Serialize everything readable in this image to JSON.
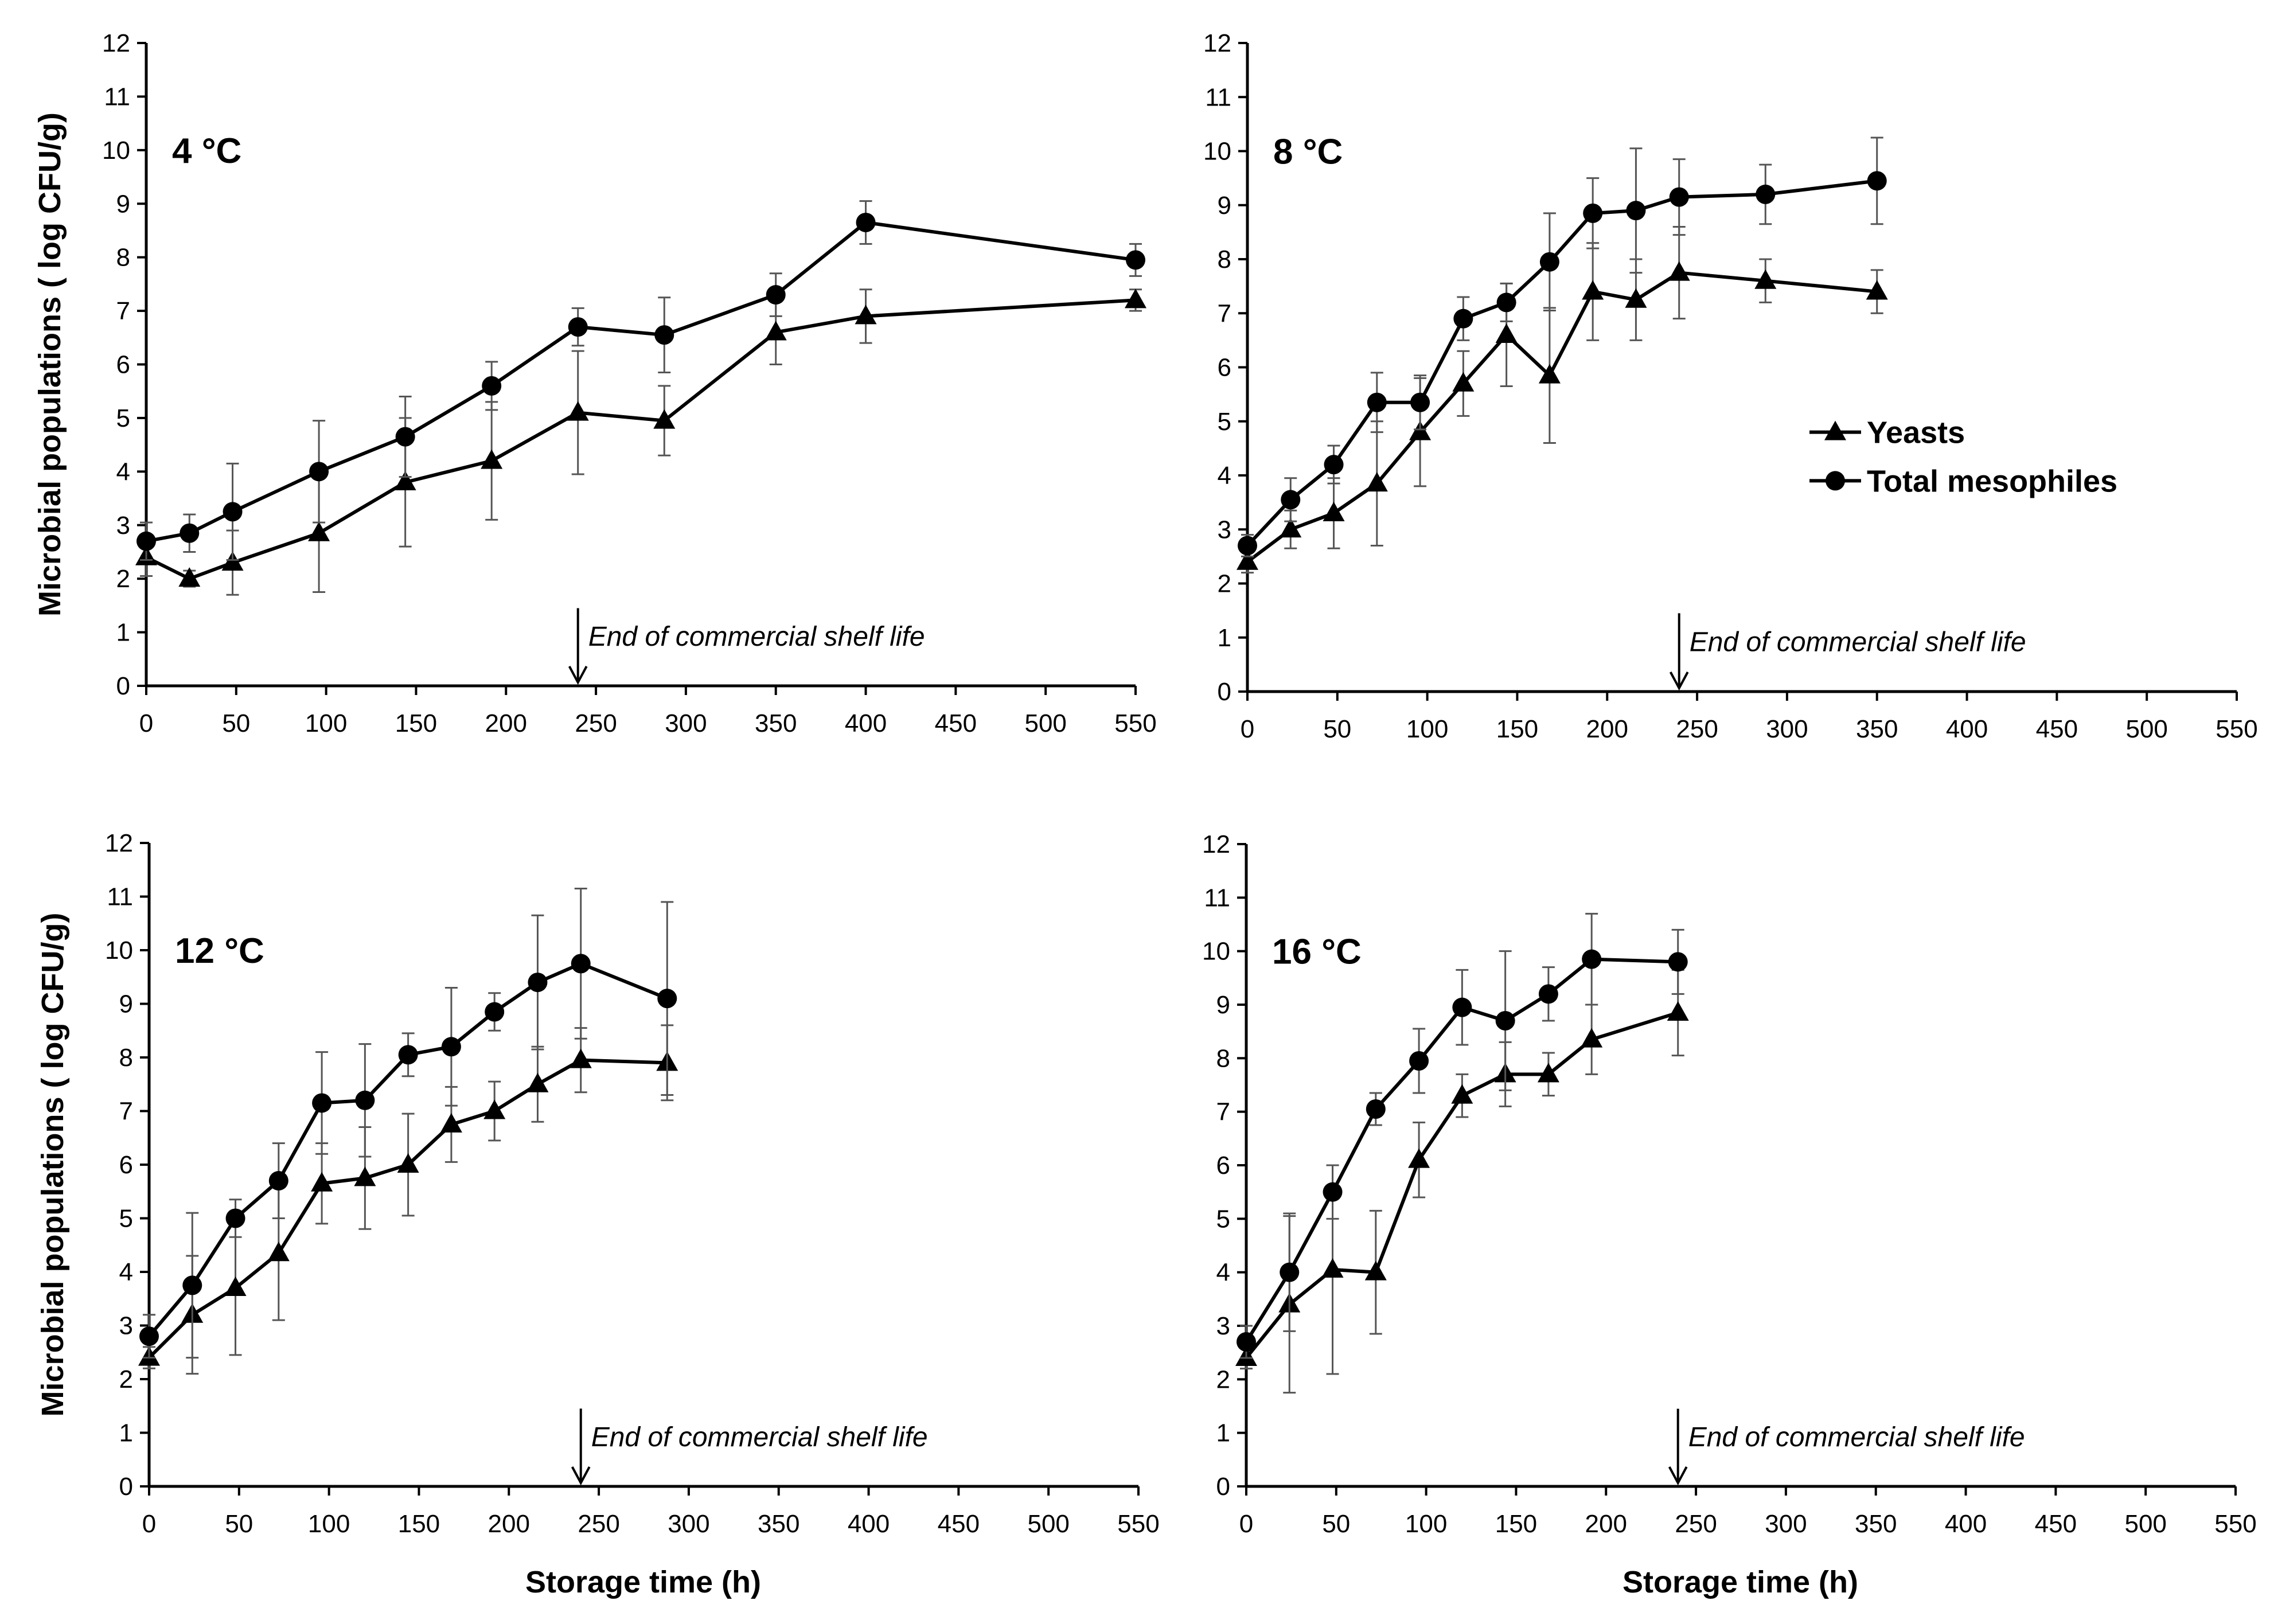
{
  "chart_data": [
    {
      "type": "line",
      "panel_label": "4 °C",
      "x_ticks": [
        "0",
        "50",
        "100",
        "150",
        "200",
        "250",
        "300",
        "350",
        "400",
        "450",
        "500",
        "550"
      ],
      "y_ticks": [
        "0",
        "1",
        "2",
        "3",
        "4",
        "5",
        "6",
        "7",
        "8",
        "9",
        "10",
        "11",
        "12"
      ],
      "xlim": [
        0,
        550
      ],
      "ylim": [
        0,
        12
      ],
      "ylabel": "Microbial populations ( log CFU/g)",
      "xlabel": "",
      "annotation": {
        "text": "End of commercial shelf life",
        "x": 240
      },
      "series": [
        {
          "name": "Yeasts",
          "marker": "triangle",
          "x": [
            0,
            24,
            48,
            96,
            144,
            192,
            240,
            288,
            350,
            400,
            550
          ],
          "y": [
            2.4,
            2.0,
            2.3,
            2.85,
            3.8,
            4.2,
            5.1,
            4.95,
            6.6,
            6.9,
            7.2
          ],
          "err": [
            0.35,
            0.15,
            0.6,
            1.1,
            1.2,
            1.1,
            1.15,
            0.65,
            0.6,
            0.5,
            0.2
          ]
        },
        {
          "name": "Total mesophiles",
          "marker": "circle",
          "x": [
            0,
            24,
            48,
            96,
            144,
            192,
            240,
            288,
            350,
            400,
            550
          ],
          "y": [
            2.7,
            2.85,
            3.25,
            4.0,
            4.65,
            5.6,
            6.7,
            6.55,
            7.3,
            8.65,
            7.95
          ],
          "err": [
            0.35,
            0.35,
            0.9,
            0.95,
            0.75,
            0.45,
            0.35,
            0.7,
            0.4,
            0.4,
            0.3
          ]
        }
      ]
    },
    {
      "type": "line",
      "panel_label": "8 °C",
      "x_ticks": [
        "0",
        "50",
        "100",
        "150",
        "200",
        "250",
        "300",
        "350",
        "400",
        "450",
        "500",
        "550"
      ],
      "y_ticks": [
        "0",
        "1",
        "2",
        "3",
        "4",
        "5",
        "6",
        "7",
        "8",
        "9",
        "10",
        "11",
        "12"
      ],
      "xlim": [
        0,
        550
      ],
      "ylim": [
        0,
        12
      ],
      "ylabel": "",
      "xlabel": "",
      "annotation": {
        "text": "End of commercial shelf life",
        "x": 240
      },
      "legend": {
        "position": "right-middle",
        "entries": [
          "Yeasts",
          "Total mesophiles"
        ]
      },
      "series": [
        {
          "name": "Yeasts",
          "marker": "triangle",
          "x": [
            0,
            24,
            48,
            72,
            96,
            120,
            144,
            168,
            192,
            216,
            240,
            288,
            350
          ],
          "y": [
            2.4,
            3.0,
            3.3,
            3.85,
            4.8,
            5.7,
            6.6,
            5.85,
            7.4,
            7.25,
            7.75,
            7.6,
            7.4
          ],
          "err": [
            0.2,
            0.35,
            0.65,
            1.15,
            1.0,
            0.6,
            0.95,
            1.25,
            0.9,
            0.75,
            0.85,
            0.4,
            0.4
          ]
        },
        {
          "name": "Total mesophiles",
          "marker": "circle",
          "x": [
            0,
            24,
            48,
            72,
            96,
            120,
            144,
            168,
            192,
            216,
            240,
            288,
            350
          ],
          "y": [
            2.7,
            3.55,
            4.2,
            5.35,
            5.35,
            6.9,
            7.2,
            7.95,
            8.85,
            8.9,
            9.15,
            9.2,
            9.45
          ],
          "err": [
            0.2,
            0.4,
            0.35,
            0.55,
            0.5,
            0.4,
            0.35,
            0.9,
            0.65,
            1.15,
            0.7,
            0.55,
            0.8
          ]
        }
      ]
    },
    {
      "type": "line",
      "panel_label": "12 °C",
      "x_ticks": [
        "0",
        "50",
        "100",
        "150",
        "200",
        "250",
        "300",
        "350",
        "400",
        "450",
        "500",
        "550"
      ],
      "y_ticks": [
        "0",
        "1",
        "2",
        "3",
        "4",
        "5",
        "6",
        "7",
        "8",
        "9",
        "10",
        "11",
        "12"
      ],
      "xlim": [
        0,
        550
      ],
      "ylim": [
        0,
        12
      ],
      "ylabel": "Microbial populations ( log CFU/g)",
      "xlabel": "Storage time (h)",
      "annotation": {
        "text": "End of commercial shelf life",
        "x": 240
      },
      "series": [
        {
          "name": "Yeasts",
          "marker": "triangle",
          "x": [
            0,
            24,
            48,
            72,
            96,
            120,
            144,
            168,
            192,
            216,
            240,
            288
          ],
          "y": [
            2.4,
            3.2,
            3.7,
            4.35,
            5.65,
            5.75,
            6.0,
            6.75,
            7.0,
            7.5,
            7.95,
            7.9
          ],
          "err": [
            0.2,
            1.1,
            1.25,
            1.25,
            0.75,
            0.95,
            0.95,
            0.7,
            0.55,
            0.7,
            0.6,
            0.7
          ]
        },
        {
          "name": "Total mesophiles",
          "marker": "circle",
          "x": [
            0,
            24,
            48,
            72,
            96,
            120,
            144,
            168,
            192,
            216,
            240,
            288
          ],
          "y": [
            2.8,
            3.75,
            5.0,
            5.7,
            7.15,
            7.2,
            8.05,
            8.2,
            8.85,
            9.4,
            9.75,
            9.1
          ],
          "err": [
            0.4,
            1.35,
            0.35,
            0.7,
            0.95,
            1.05,
            0.4,
            1.1,
            0.35,
            1.25,
            1.4,
            1.8
          ]
        }
      ]
    },
    {
      "type": "line",
      "panel_label": "16 °C",
      "x_ticks": [
        "0",
        "50",
        "100",
        "150",
        "200",
        "250",
        "300",
        "350",
        "400",
        "450",
        "500",
        "550"
      ],
      "y_ticks": [
        "0",
        "1",
        "2",
        "3",
        "4",
        "5",
        "6",
        "7",
        "8",
        "9",
        "10",
        "11",
        "12"
      ],
      "xlim": [
        0,
        550
      ],
      "ylim": [
        0,
        12
      ],
      "ylabel": "",
      "xlabel": "Storage time (h)",
      "annotation": {
        "text": "End of commercial shelf life",
        "x": 240
      },
      "series": [
        {
          "name": "Yeasts",
          "marker": "triangle",
          "x": [
            0,
            24,
            48,
            72,
            96,
            120,
            144,
            168,
            192,
            240
          ],
          "y": [
            2.4,
            3.4,
            4.05,
            4.0,
            6.1,
            7.3,
            7.7,
            7.7,
            8.35,
            8.85
          ],
          "err": [
            0.2,
            1.65,
            1.95,
            1.15,
            0.7,
            0.4,
            0.6,
            0.4,
            0.65,
            0.8
          ]
        },
        {
          "name": "Total mesophiles",
          "marker": "circle",
          "x": [
            0,
            24,
            48,
            72,
            96,
            120,
            144,
            168,
            192,
            240
          ],
          "y": [
            2.7,
            4.0,
            5.5,
            7.05,
            7.95,
            8.95,
            8.7,
            9.2,
            9.85,
            9.8
          ],
          "err": [
            0.3,
            1.1,
            0.5,
            0.3,
            0.6,
            0.7,
            1.3,
            0.5,
            0.85,
            0.6
          ]
        }
      ]
    }
  ]
}
